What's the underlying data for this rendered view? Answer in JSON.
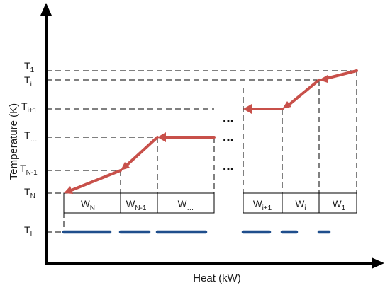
{
  "axes": {
    "y_label": "Temperature (K)",
    "x_label": "Heat (kW)"
  },
  "temperature_levels": [
    {
      "base": "T",
      "sub": "1"
    },
    {
      "base": "T",
      "sub": "i"
    },
    {
      "base": "T",
      "sub": "i+1"
    },
    {
      "base": "T",
      "sub": "…"
    },
    {
      "base": "T",
      "sub": "N-1"
    },
    {
      "base": "T",
      "sub": "N"
    },
    {
      "base": "T",
      "sub": "L"
    }
  ],
  "heat_segments": [
    {
      "base": "W",
      "sub": "N"
    },
    {
      "base": "W",
      "sub": "N-1"
    },
    {
      "base": "W",
      "sub": "…"
    },
    {
      "base": "W",
      "sub": "i+1"
    },
    {
      "base": "W",
      "sub": "i"
    },
    {
      "base": "W",
      "sub": "1"
    }
  ],
  "ellipsis": "⋯",
  "colors": {
    "hot_stream": "#c8504a",
    "cold_stream": "#1f4e8c",
    "axis": "#000000"
  }
}
